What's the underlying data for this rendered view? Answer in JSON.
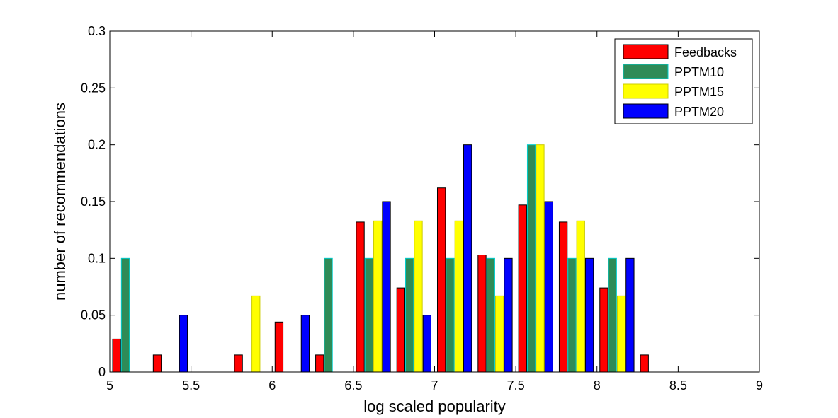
{
  "chart_data": {
    "type": "bar",
    "title": "",
    "xlabel": "log scaled popularity",
    "ylabel": "number of recommendations",
    "xlim": [
      5,
      9
    ],
    "ylim": [
      0,
      0.3
    ],
    "x_ticks": [
      "5",
      "5.5",
      "6",
      "6.5",
      "7",
      "7.5",
      "8",
      "8.5",
      "9"
    ],
    "y_ticks": [
      "0",
      "0.05",
      "0.1",
      "0.15",
      "0.2",
      "0.25",
      "0.3"
    ],
    "grid": false,
    "legend_position": "top-right",
    "x": [
      5.125,
      5.375,
      5.625,
      5.875,
      6.125,
      6.375,
      6.625,
      6.875,
      7.125,
      7.375,
      7.625,
      7.875,
      8.125,
      8.375,
      8.625,
      8.875
    ],
    "series": [
      {
        "name": "Feedbacks",
        "color": "#ff0000",
        "edge": "#000000",
        "values": [
          0.029,
          0.015,
          0,
          0.015,
          0.044,
          0.015,
          0.132,
          0.074,
          0.162,
          0.103,
          0.147,
          0.132,
          0.074,
          0.015,
          0,
          0
        ]
      },
      {
        "name": "PPTM10",
        "color": "#2e8b57",
        "edge": "#00cccc",
        "values": [
          0.1,
          0,
          0,
          0,
          0,
          0.1,
          0.1,
          0.1,
          0.1,
          0.1,
          0.2,
          0.1,
          0.1,
          0,
          0,
          0
        ]
      },
      {
        "name": "PPTM15",
        "color": "#ffff00",
        "edge": "#cccc00",
        "values": [
          0,
          0,
          0,
          0.067,
          0,
          0,
          0.133,
          0.133,
          0.133,
          0.067,
          0.2,
          0.133,
          0.067,
          0,
          0,
          0
        ]
      },
      {
        "name": "PPTM20",
        "color": "#0000ff",
        "edge": "#000000",
        "values": [
          0,
          0.05,
          0,
          0,
          0.05,
          0,
          0.15,
          0.05,
          0.2,
          0.1,
          0.15,
          0.1,
          0.1,
          0,
          0,
          0
        ]
      }
    ]
  }
}
